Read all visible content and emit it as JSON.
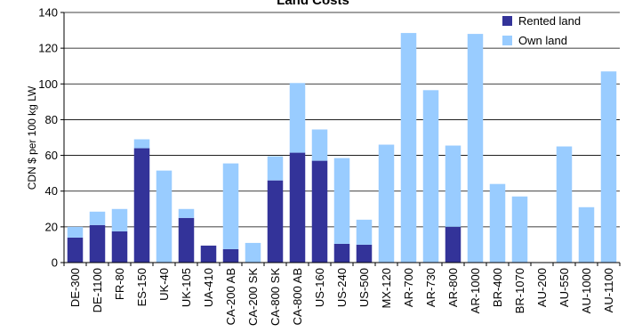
{
  "chart_data": {
    "type": "bar",
    "stacked": true,
    "title": "Land Costs",
    "xlabel": "",
    "ylabel": "CDN $ per 100 kg LW",
    "ylim": [
      0,
      140
    ],
    "yticks": [
      0,
      20,
      40,
      60,
      80,
      100,
      120,
      140
    ],
    "grid": true,
    "legend_position": "top-right",
    "categories": [
      "DE-300",
      "DE-1100",
      "FR-80",
      "ES-150",
      "UK-40",
      "UK-105",
      "UA-410",
      "CA-200 AB",
      "CA-200 SK",
      "CA-800 SK",
      "CA-800 AB",
      "US-160",
      "US-240",
      "US-500",
      "MX-120",
      "AR-700",
      "AR-730",
      "AR-800",
      "AR-1000",
      "BR-400",
      "BR-1070",
      "AU-200",
      "AU-550",
      "AU-1000",
      "AU-1100"
    ],
    "series": [
      {
        "name": "Rented land",
        "color": "#333399",
        "values": [
          14,
          21,
          17.5,
          64,
          0,
          25,
          9.5,
          7.5,
          0,
          46,
          61.5,
          57,
          10.5,
          10,
          0,
          0,
          0,
          20,
          0,
          0,
          0,
          0,
          0,
          0,
          0
        ]
      },
      {
        "name": "Own land",
        "color": "#99ccff",
        "values": [
          6,
          7.5,
          12.5,
          5,
          51.5,
          5,
          0,
          48,
          11,
          13.5,
          39,
          17.5,
          48,
          14,
          66,
          128.5,
          96.5,
          45.5,
          128,
          44,
          37,
          0,
          65,
          31,
          107
        ]
      }
    ]
  }
}
